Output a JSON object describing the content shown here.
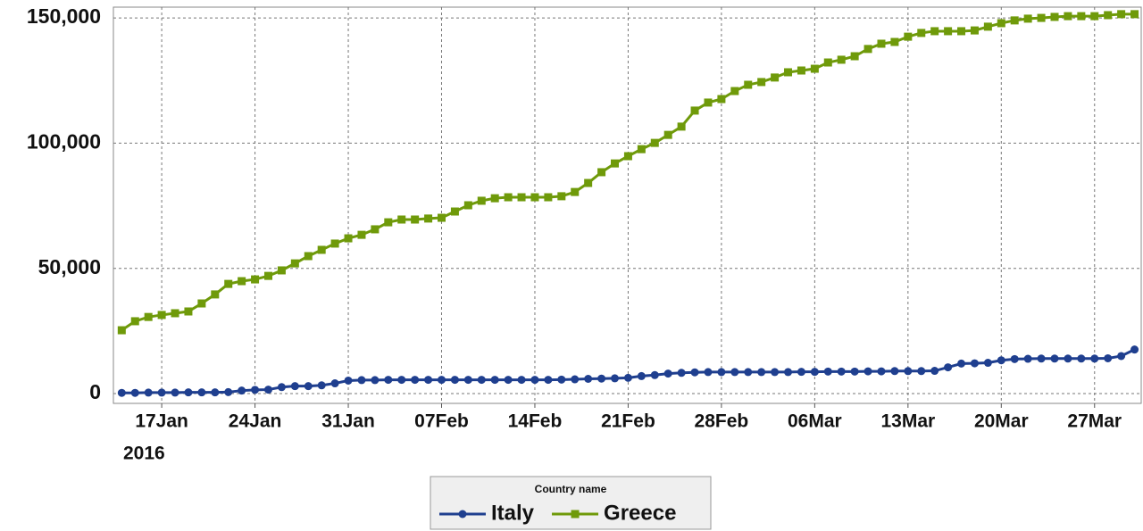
{
  "chart_data": {
    "type": "line",
    "x": [
      "2016-01-14",
      "2016-01-15",
      "2016-01-16",
      "2016-01-17",
      "2016-01-18",
      "2016-01-19",
      "2016-01-20",
      "2016-01-21",
      "2016-01-22",
      "2016-01-23",
      "2016-01-24",
      "2016-01-25",
      "2016-01-26",
      "2016-01-27",
      "2016-01-28",
      "2016-01-29",
      "2016-01-30",
      "2016-01-31",
      "2016-02-01",
      "2016-02-02",
      "2016-02-03",
      "2016-02-04",
      "2016-02-05",
      "2016-02-06",
      "2016-02-07",
      "2016-02-08",
      "2016-02-09",
      "2016-02-10",
      "2016-02-11",
      "2016-02-12",
      "2016-02-13",
      "2016-02-14",
      "2016-02-15",
      "2016-02-16",
      "2016-02-17",
      "2016-02-18",
      "2016-02-19",
      "2016-02-20",
      "2016-02-21",
      "2016-02-22",
      "2016-02-23",
      "2016-02-24",
      "2016-02-25",
      "2016-02-26",
      "2016-02-27",
      "2016-02-28",
      "2016-02-29",
      "2016-03-01",
      "2016-03-02",
      "2016-03-03",
      "2016-03-04",
      "2016-03-05",
      "2016-03-06",
      "2016-03-07",
      "2016-03-08",
      "2016-03-09",
      "2016-03-10",
      "2016-03-11",
      "2016-03-12",
      "2016-03-13",
      "2016-03-14",
      "2016-03-15",
      "2016-03-16",
      "2016-03-17",
      "2016-03-18",
      "2016-03-19",
      "2016-03-20",
      "2016-03-21",
      "2016-03-22",
      "2016-03-23",
      "2016-03-24",
      "2016-03-25",
      "2016-03-26",
      "2016-03-27",
      "2016-03-28",
      "2016-03-29",
      "2016-03-30"
    ],
    "series": [
      {
        "name": "Italy",
        "color": "#1f3f8f",
        "marker": "circle",
        "values": [
          300,
          300,
          400,
          400,
          400,
          500,
          500,
          500,
          600,
          1200,
          1500,
          1600,
          2600,
          3000,
          3000,
          3300,
          4100,
          5200,
          5400,
          5400,
          5500,
          5500,
          5500,
          5500,
          5500,
          5500,
          5500,
          5500,
          5500,
          5500,
          5500,
          5500,
          5500,
          5600,
          5700,
          5900,
          6000,
          6100,
          6300,
          7000,
          7400,
          8000,
          8300,
          8500,
          8600,
          8600,
          8600,
          8600,
          8600,
          8600,
          8600,
          8700,
          8700,
          8800,
          8800,
          8800,
          8900,
          8900,
          9000,
          9000,
          9000,
          9100,
          10500,
          12000,
          12100,
          12300,
          13300,
          13800,
          13900,
          14000,
          14000,
          14000,
          14000,
          14000,
          14100,
          15000,
          17600
        ]
      },
      {
        "name": "Greece",
        "color": "#6f9a0a",
        "marker": "square",
        "values": [
          25300,
          28900,
          30600,
          31400,
          32100,
          32800,
          36000,
          39600,
          43800,
          44900,
          45600,
          47000,
          49200,
          52000,
          54900,
          57400,
          59900,
          62000,
          63400,
          65600,
          68400,
          69500,
          69500,
          69900,
          70200,
          72700,
          75200,
          77000,
          78000,
          78400,
          78400,
          78400,
          78400,
          78800,
          80500,
          84100,
          88400,
          91900,
          94800,
          97600,
          100100,
          103300,
          106600,
          113000,
          116200,
          117600,
          120800,
          123300,
          124400,
          126200,
          128300,
          129000,
          129700,
          132200,
          133300,
          134700,
          137600,
          139700,
          140400,
          142500,
          144000,
          144700,
          144700,
          144700,
          145000,
          146500,
          147900,
          149000,
          149700,
          150000,
          150400,
          150700,
          150700,
          150700,
          151100,
          151500,
          151500
        ]
      }
    ],
    "xlim": [
      "2016-01-13T09:00",
      "2016-03-30T12:00"
    ],
    "xticks": [
      {
        "value": "2016-01-17",
        "label": "17Jan"
      },
      {
        "value": "2016-01-24",
        "label": "24Jan"
      },
      {
        "value": "2016-01-31",
        "label": "31Jan"
      },
      {
        "value": "2016-02-07",
        "label": "07Feb"
      },
      {
        "value": "2016-02-14",
        "label": "14Feb"
      },
      {
        "value": "2016-02-21",
        "label": "21Feb"
      },
      {
        "value": "2016-02-28",
        "label": "28Feb"
      },
      {
        "value": "2016-03-06",
        "label": "06Mar"
      },
      {
        "value": "2016-03-13",
        "label": "13Mar"
      },
      {
        "value": "2016-03-20",
        "label": "20Mar"
      },
      {
        "value": "2016-03-27",
        "label": "27Mar"
      }
    ],
    "x_year_label": "2016",
    "ylim": [
      -3900,
      154300
    ],
    "yticks": [
      0,
      {
        "value": 50000,
        "label": "50,000"
      },
      {
        "value": 100000,
        "label": "100,000"
      },
      {
        "value": 150000,
        "label": "150,000"
      }
    ],
    "grid": true,
    "legend_title": "Country name",
    "legend": "bottom"
  }
}
